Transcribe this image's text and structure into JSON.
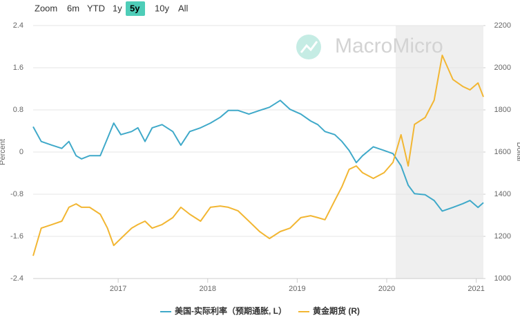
{
  "chart_data": {
    "type": "line",
    "zoom": {
      "label": "Zoom",
      "options": [
        "6m",
        "YTD",
        "1y",
        "5y",
        "10y",
        "All"
      ],
      "selected": 3
    },
    "watermark": "MacroMicro",
    "y_label": "Percent",
    "y2_label": "Dollar",
    "x": [
      2016.05,
      2016.14,
      2016.26,
      2016.37,
      2016.45,
      2016.53,
      2016.59,
      2016.68,
      2016.8,
      2016.88,
      2016.95,
      2017.03,
      2017.15,
      2017.22,
      2017.3,
      2017.38,
      2017.49,
      2017.61,
      2017.7,
      2017.8,
      2017.92,
      2018.03,
      2018.14,
      2018.23,
      2018.34,
      2018.46,
      2018.58,
      2018.69,
      2018.81,
      2018.92,
      2019.04,
      2019.15,
      2019.23,
      2019.31,
      2019.42,
      2019.5,
      2019.58,
      2019.66,
      2019.73,
      2019.85,
      2019.97,
      2020.07,
      2020.16,
      2020.24,
      2020.31,
      2020.43,
      2020.53,
      2020.62,
      2020.74,
      2020.85,
      2020.93,
      2021.02,
      2021.08
    ],
    "xlim": [
      2016.05,
      2021.08
    ],
    "xticks": [
      2017,
      2018,
      2019,
      2020,
      2021
    ],
    "ylim": [
      -2.4,
      2.4
    ],
    "yticks": [
      2.4,
      1.6,
      0.8,
      0,
      -0.8,
      -1.6,
      -2.4
    ],
    "y2lim": [
      1000,
      2200
    ],
    "y2ticks": [
      2200,
      2000,
      1800,
      1600,
      1400,
      1200,
      1000
    ],
    "highlight_range": [
      2020.1,
      2021.08
    ],
    "grid": true,
    "series": [
      {
        "name": "美国-实际利率（预期通胀, L）",
        "color": "#3fa9c9",
        "values": [
          0.48,
          0.2,
          0.13,
          0.07,
          0.2,
          -0.07,
          -0.13,
          -0.07,
          -0.07,
          0.26,
          0.55,
          0.33,
          0.39,
          0.46,
          0.2,
          0.46,
          0.52,
          0.39,
          0.13,
          0.39,
          0.46,
          0.55,
          0.66,
          0.79,
          0.79,
          0.72,
          0.79,
          0.85,
          0.98,
          0.81,
          0.72,
          0.59,
          0.52,
          0.39,
          0.33,
          0.2,
          0.03,
          -0.2,
          -0.07,
          0.1,
          0.03,
          -0.03,
          -0.26,
          -0.63,
          -0.79,
          -0.81,
          -0.92,
          -1.12,
          -1.05,
          -0.98,
          -0.92,
          -1.05,
          -0.96
        ]
      },
      {
        "name": "黄金期货 (R)",
        "color": "#f2b632",
        "axis": "y2",
        "values": [
          1108,
          1239,
          1256,
          1272,
          1338,
          1354,
          1338,
          1338,
          1305,
          1239,
          1157,
          1190,
          1239,
          1256,
          1272,
          1239,
          1256,
          1289,
          1338,
          1305,
          1272,
          1338,
          1344,
          1338,
          1321,
          1272,
          1223,
          1190,
          1223,
          1239,
          1289,
          1298,
          1289,
          1279,
          1370,
          1436,
          1518,
          1534,
          1502,
          1475,
          1502,
          1551,
          1682,
          1534,
          1731,
          1764,
          1846,
          2059,
          1944,
          1911,
          1895,
          1928,
          1862
        ]
      }
    ]
  }
}
